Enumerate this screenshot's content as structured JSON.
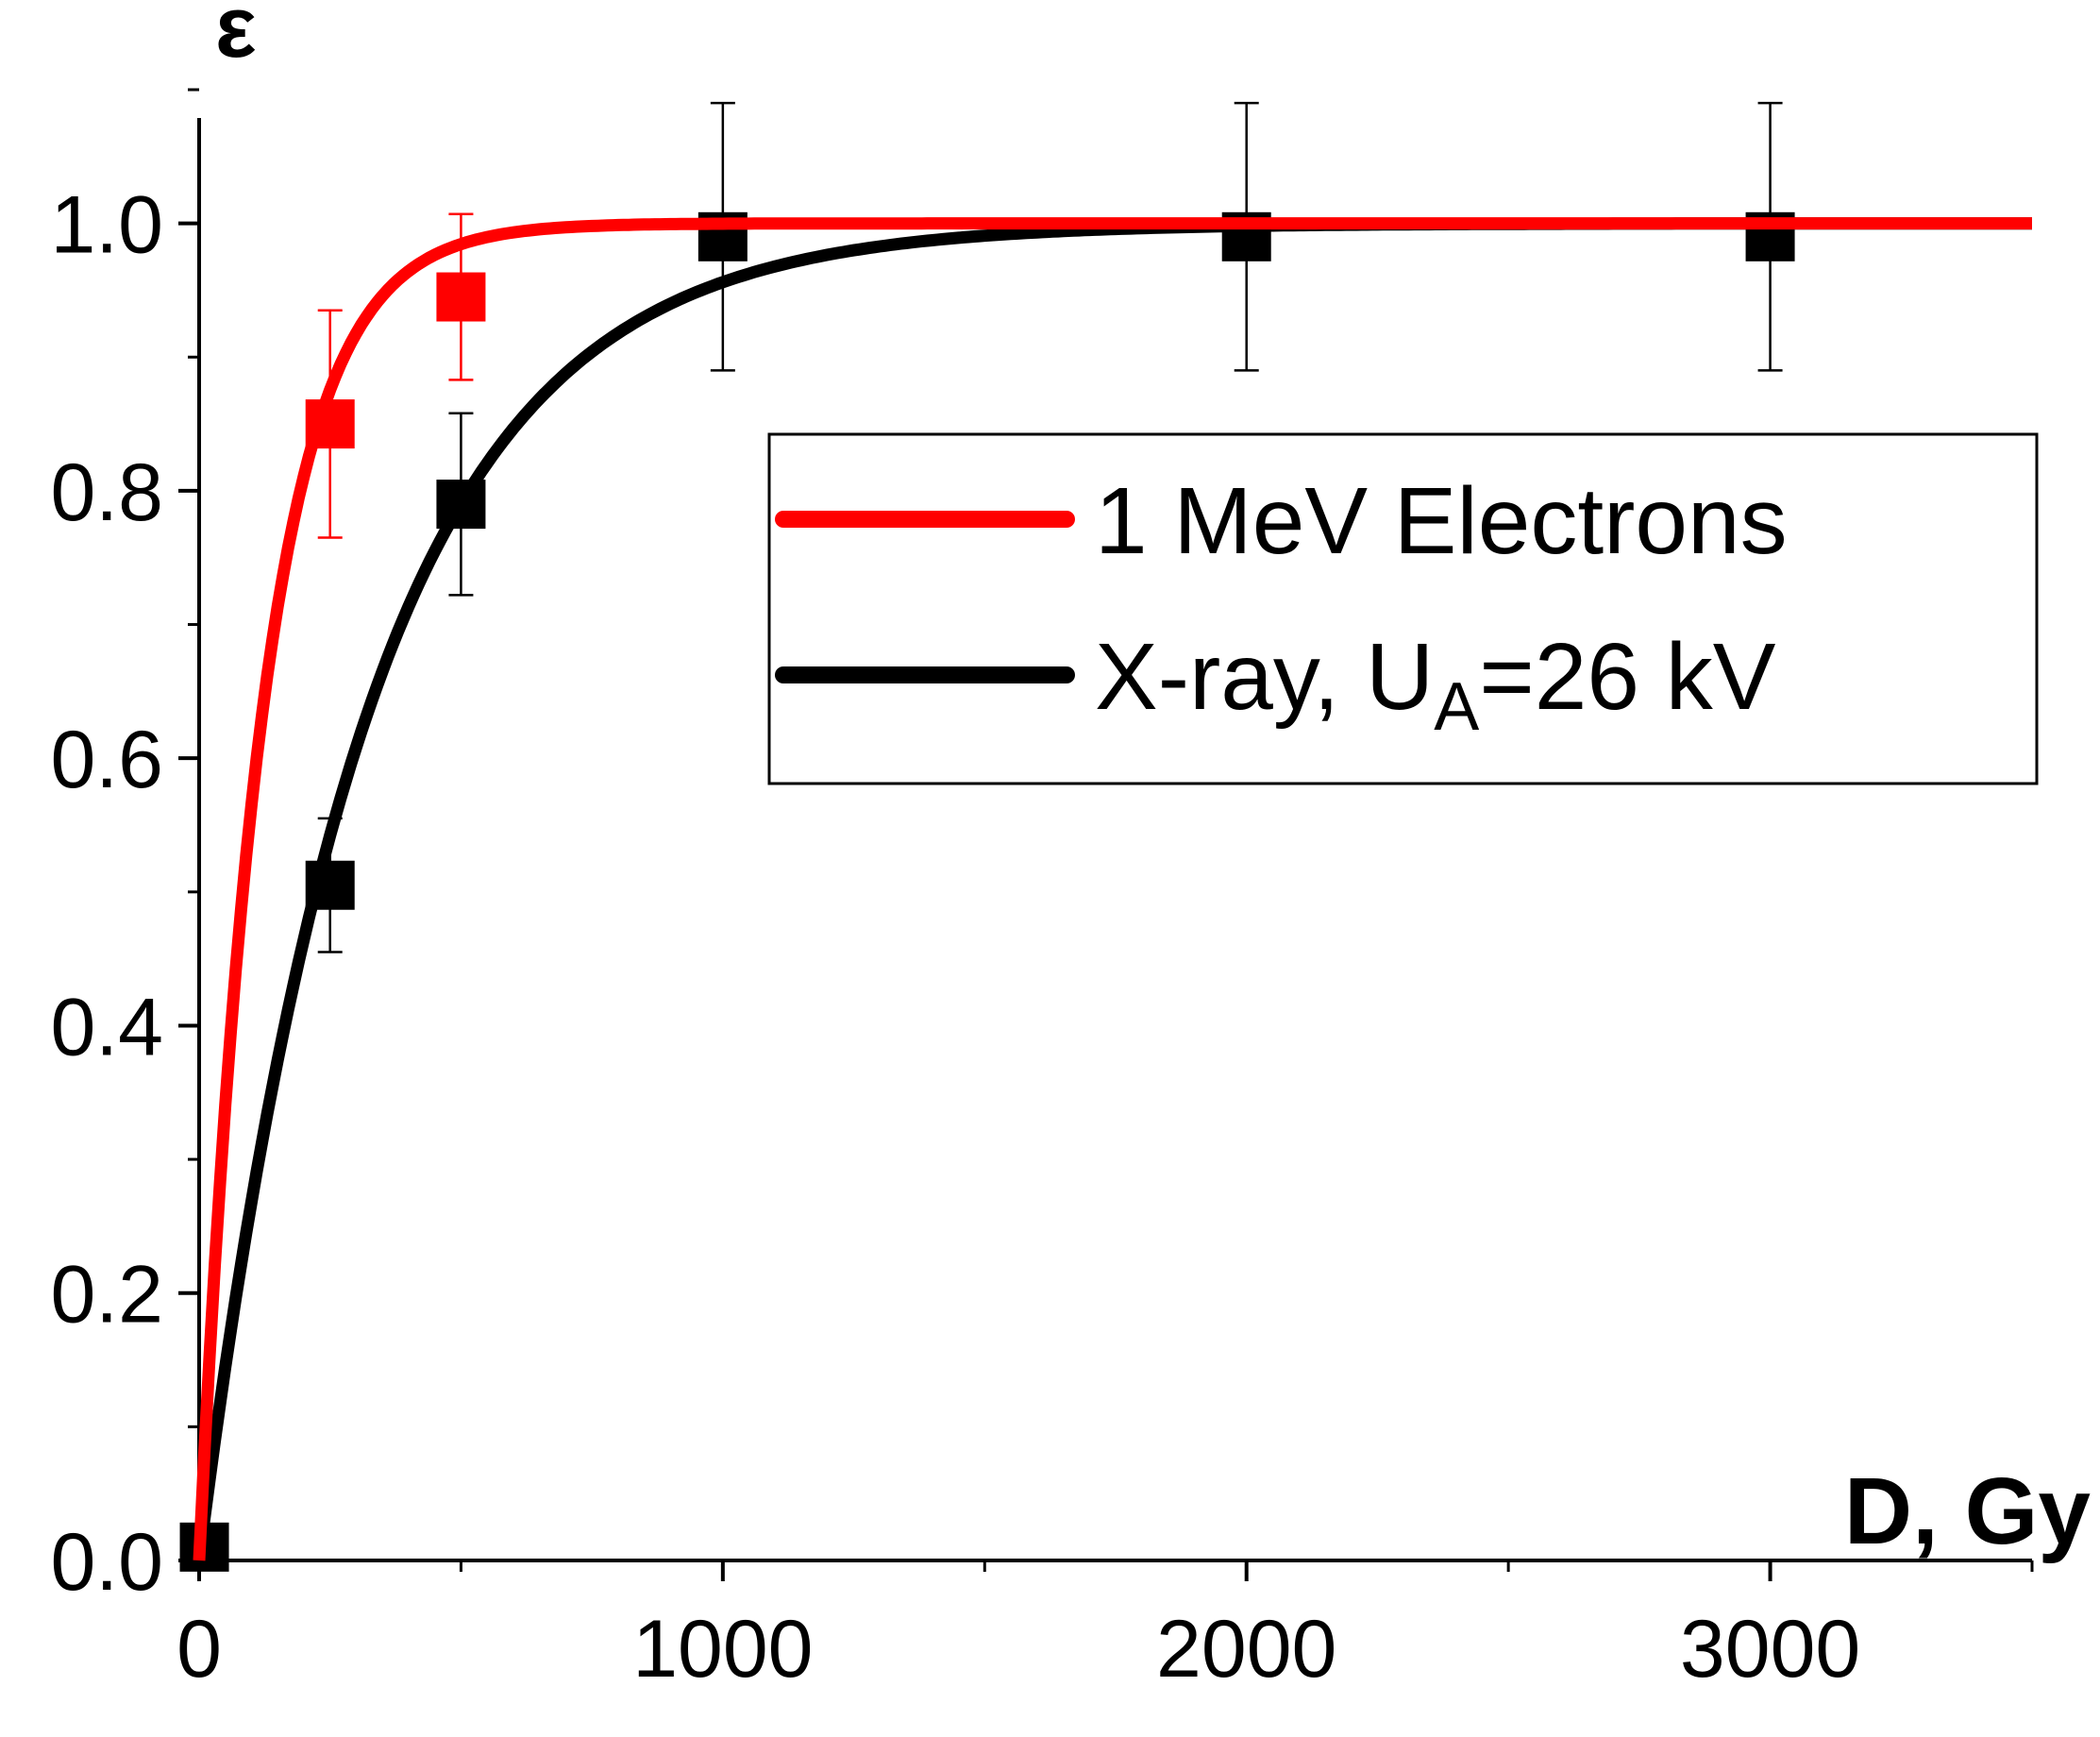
{
  "chart_data": {
    "type": "line",
    "title": "",
    "xlabel": "D, Gy",
    "ylabel": "ε",
    "xlim": [
      0,
      3500
    ],
    "ylim": [
      0,
      1.1
    ],
    "xticks": [
      0,
      1000,
      2000,
      3000
    ],
    "xtick_labels": [
      "0",
      "1000",
      "2000",
      "3000"
    ],
    "x_minor_ticks": [
      500,
      1500,
      2500,
      3500
    ],
    "yticks": [
      0.0,
      0.2,
      0.4,
      0.6,
      0.8,
      1.0
    ],
    "ytick_labels": [
      "0.0",
      "0.2",
      "0.4",
      "0.6",
      "0.8",
      "1.0"
    ],
    "y_minor_ticks": [
      0.1,
      0.3,
      0.5,
      0.7,
      0.9,
      1.1
    ],
    "grid": false,
    "legend_position": "center-right",
    "series": [
      {
        "name": "1 MeV Electrons",
        "name_main": "1 MeV Electrons",
        "color": "#ff0000",
        "points": [
          {
            "x": 250,
            "y": 0.85,
            "err": 0.085
          },
          {
            "x": 500,
            "y": 0.945,
            "err": 0.062
          }
        ],
        "fit": {
          "type": "saturation_exponential",
          "tau": 120
        }
      },
      {
        "name": "X-ray, U_A=26 kV",
        "name_main": "X-ray, U",
        "name_sub": "A",
        "name_tail": "=26 kV",
        "color": "#000000",
        "points": [
          {
            "x": 10,
            "y": 0.01,
            "err": 0
          },
          {
            "x": 250,
            "y": 0.505,
            "err": 0.05
          },
          {
            "x": 500,
            "y": 0.79,
            "err": 0.068
          },
          {
            "x": 1000,
            "y": 0.99,
            "err": 0.1
          },
          {
            "x": 2000,
            "y": 0.99,
            "err": 0.1
          },
          {
            "x": 3000,
            "y": 0.99,
            "err": 0.1
          }
        ],
        "fit": {
          "type": "saturation_exponential",
          "tau": 320
        }
      }
    ]
  }
}
